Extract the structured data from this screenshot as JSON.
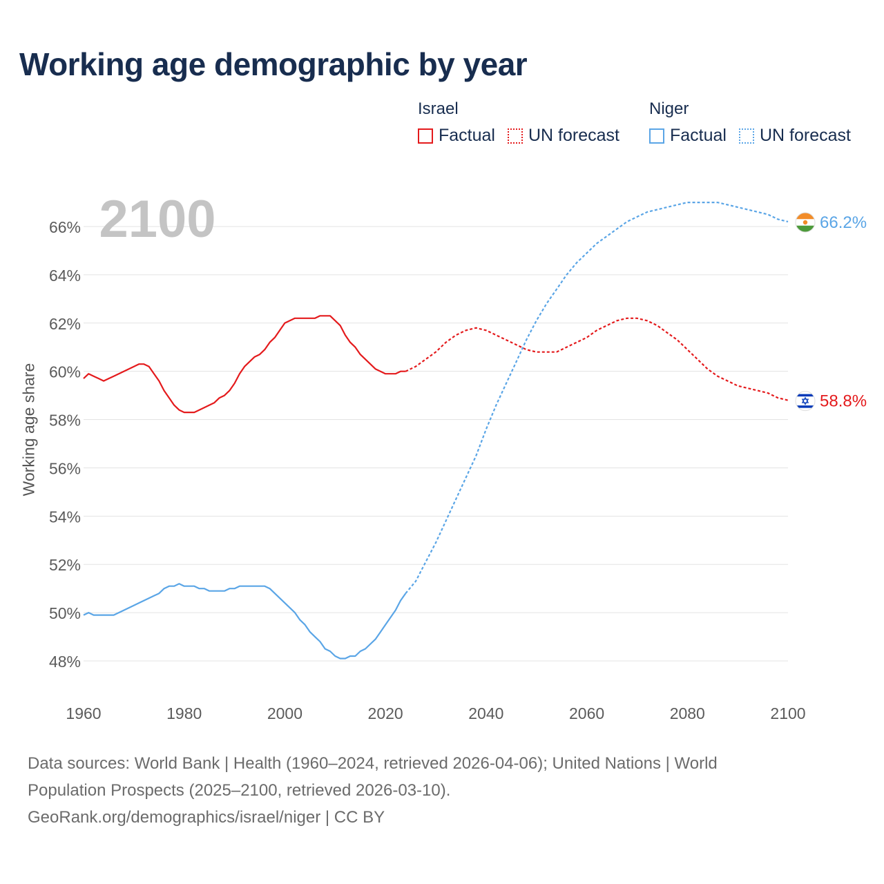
{
  "title": "Working age demographic by year",
  "legend": {
    "groups": [
      {
        "name": "Israel",
        "factual_label": "Factual",
        "forecast_label": "UN forecast",
        "color": "#e41a1c"
      },
      {
        "name": "Niger",
        "factual_label": "Factual",
        "forecast_label": "UN forecast",
        "color": "#5aa5e6"
      }
    ]
  },
  "footer": {
    "line1": "Data sources: World Bank | Health (1960–2024, retrieved 2026-04-06); United Nations | World",
    "line2": "Population Prospects (2025–2100, retrieved 2026-03-10).",
    "line3": "GeoRank.org/demographics/israel/niger | CC BY"
  },
  "chart_data": {
    "type": "line",
    "title": "Working age demographic by year",
    "year_overlay": "2100",
    "xlabel": "",
    "ylabel": "Working age share",
    "xlim": [
      1960,
      2100
    ],
    "ylim": [
      47,
      67
    ],
    "grid": true,
    "x_ticks": [
      1960,
      1980,
      2000,
      2020,
      2040,
      2060,
      2080,
      2100
    ],
    "x_tick_labels": [
      "1960",
      "1980",
      "2000",
      "2020",
      "2040",
      "2060",
      "2080",
      "2100"
    ],
    "y_ticks": [
      48,
      50,
      52,
      54,
      56,
      58,
      60,
      62,
      64,
      66
    ],
    "y_tick_labels": [
      "48%",
      "50%",
      "52%",
      "54%",
      "56%",
      "58%",
      "60%",
      "62%",
      "64%",
      "66%"
    ],
    "series": [
      {
        "name": "Israel",
        "color": "#e41a1c",
        "end_label": "58.8%",
        "flag_icon": "israel-flag-icon",
        "factual": {
          "x": [
            1960,
            1961,
            1962,
            1963,
            1964,
            1965,
            1966,
            1967,
            1968,
            1969,
            1970,
            1971,
            1972,
            1973,
            1974,
            1975,
            1976,
            1977,
            1978,
            1979,
            1980,
            1981,
            1982,
            1983,
            1984,
            1985,
            1986,
            1987,
            1988,
            1989,
            1990,
            1991,
            1992,
            1993,
            1994,
            1995,
            1996,
            1997,
            1998,
            1999,
            2000,
            2001,
            2002,
            2003,
            2004,
            2005,
            2006,
            2007,
            2008,
            2009,
            2010,
            2011,
            2012,
            2013,
            2014,
            2015,
            2016,
            2017,
            2018,
            2019,
            2020,
            2021,
            2022,
            2023,
            2024
          ],
          "y": [
            59.7,
            59.9,
            59.8,
            59.7,
            59.6,
            59.7,
            59.8,
            59.9,
            60.0,
            60.1,
            60.2,
            60.3,
            60.3,
            60.2,
            59.9,
            59.6,
            59.2,
            58.9,
            58.6,
            58.4,
            58.3,
            58.3,
            58.3,
            58.4,
            58.5,
            58.6,
            58.7,
            58.9,
            59.0,
            59.2,
            59.5,
            59.9,
            60.2,
            60.4,
            60.6,
            60.7,
            60.9,
            61.2,
            61.4,
            61.7,
            62.0,
            62.1,
            62.2,
            62.2,
            62.2,
            62.2,
            62.2,
            62.3,
            62.3,
            62.3,
            62.1,
            61.9,
            61.5,
            61.2,
            61.0,
            60.7,
            60.5,
            60.3,
            60.1,
            60.0,
            59.9,
            59.9,
            59.9,
            60.0,
            60.0
          ]
        },
        "forecast": {
          "x": [
            2024,
            2026,
            2028,
            2030,
            2032,
            2034,
            2036,
            2038,
            2040,
            2042,
            2044,
            2046,
            2048,
            2050,
            2052,
            2054,
            2056,
            2058,
            2060,
            2062,
            2064,
            2066,
            2068,
            2070,
            2072,
            2074,
            2076,
            2078,
            2080,
            2082,
            2084,
            2086,
            2088,
            2090,
            2092,
            2094,
            2096,
            2098,
            2100
          ],
          "y": [
            60.0,
            60.2,
            60.5,
            60.8,
            61.2,
            61.5,
            61.7,
            61.8,
            61.7,
            61.5,
            61.3,
            61.1,
            60.9,
            60.8,
            60.8,
            60.8,
            61.0,
            61.2,
            61.4,
            61.7,
            61.9,
            62.1,
            62.2,
            62.2,
            62.1,
            61.9,
            61.6,
            61.3,
            60.9,
            60.5,
            60.1,
            59.8,
            59.6,
            59.4,
            59.3,
            59.2,
            59.1,
            58.9,
            58.8
          ]
        }
      },
      {
        "name": "Niger",
        "color": "#5aa5e6",
        "end_label": "66.2%",
        "flag_icon": "niger-flag-icon",
        "factual": {
          "x": [
            1960,
            1961,
            1962,
            1963,
            1964,
            1965,
            1966,
            1967,
            1968,
            1969,
            1970,
            1971,
            1972,
            1973,
            1974,
            1975,
            1976,
            1977,
            1978,
            1979,
            1980,
            1981,
            1982,
            1983,
            1984,
            1985,
            1986,
            1987,
            1988,
            1989,
            1990,
            1991,
            1992,
            1993,
            1994,
            1995,
            1996,
            1997,
            1998,
            1999,
            2000,
            2001,
            2002,
            2003,
            2004,
            2005,
            2006,
            2007,
            2008,
            2009,
            2010,
            2011,
            2012,
            2013,
            2014,
            2015,
            2016,
            2017,
            2018,
            2019,
            2020,
            2021,
            2022,
            2023,
            2024
          ],
          "y": [
            49.9,
            50.0,
            49.9,
            49.9,
            49.9,
            49.9,
            49.9,
            50.0,
            50.1,
            50.2,
            50.3,
            50.4,
            50.5,
            50.6,
            50.7,
            50.8,
            51.0,
            51.1,
            51.1,
            51.2,
            51.1,
            51.1,
            51.1,
            51.0,
            51.0,
            50.9,
            50.9,
            50.9,
            50.9,
            51.0,
            51.0,
            51.1,
            51.1,
            51.1,
            51.1,
            51.1,
            51.1,
            51.0,
            50.8,
            50.6,
            50.4,
            50.2,
            50.0,
            49.7,
            49.5,
            49.2,
            49.0,
            48.8,
            48.5,
            48.4,
            48.2,
            48.1,
            48.1,
            48.2,
            48.2,
            48.4,
            48.5,
            48.7,
            48.9,
            49.2,
            49.5,
            49.8,
            50.1,
            50.5,
            50.8
          ]
        },
        "forecast": {
          "x": [
            2024,
            2026,
            2028,
            2030,
            2032,
            2034,
            2036,
            2038,
            2040,
            2042,
            2044,
            2046,
            2048,
            2050,
            2052,
            2054,
            2056,
            2058,
            2060,
            2062,
            2064,
            2066,
            2068,
            2070,
            2072,
            2074,
            2076,
            2078,
            2080,
            2082,
            2084,
            2086,
            2088,
            2090,
            2092,
            2094,
            2096,
            2098,
            2100
          ],
          "y": [
            50.8,
            51.3,
            52.1,
            52.9,
            53.8,
            54.7,
            55.6,
            56.5,
            57.6,
            58.6,
            59.5,
            60.4,
            61.3,
            62.1,
            62.8,
            63.4,
            64.0,
            64.5,
            64.9,
            65.3,
            65.6,
            65.9,
            66.2,
            66.4,
            66.6,
            66.7,
            66.8,
            66.9,
            67.0,
            67.0,
            67.0,
            67.0,
            66.9,
            66.8,
            66.7,
            66.6,
            66.5,
            66.3,
            66.2
          ]
        }
      }
    ]
  }
}
